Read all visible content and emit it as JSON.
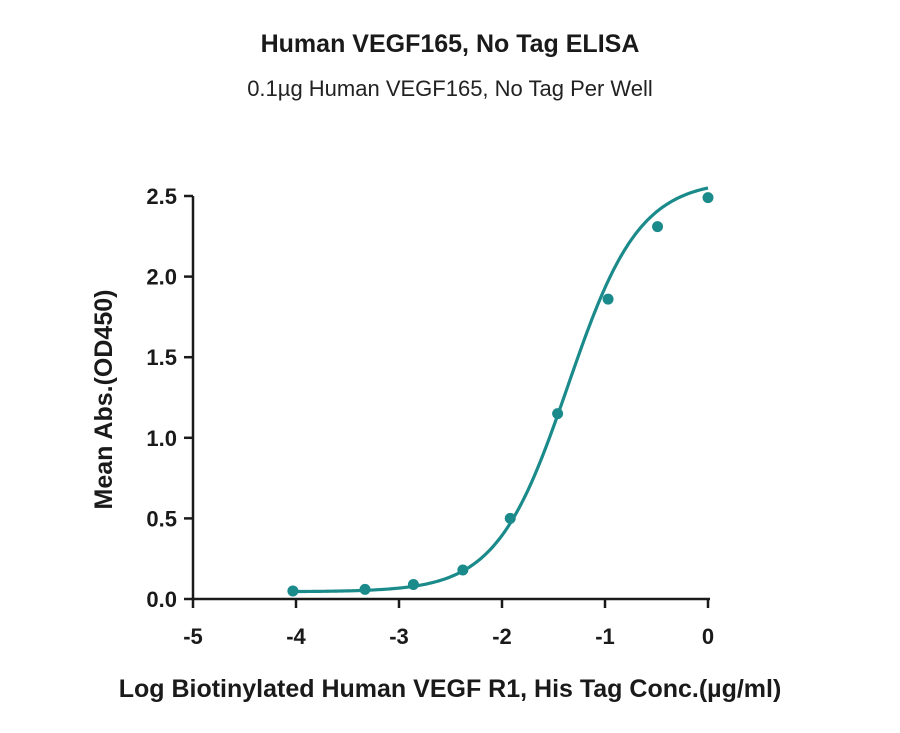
{
  "chart_data": {
    "type": "line",
    "title": "Human VEGF165, No Tag ELISA",
    "subtitle": "0.1µg Human VEGF165, No Tag Per Well",
    "xlabel": "Log Biotinylated Human VEGF R1, His Tag Conc.(µg/ml)",
    "ylabel": "Mean Abs.(OD450)",
    "xlim": [
      -5,
      0
    ],
    "ylim": [
      0,
      2.5
    ],
    "x_ticks": [
      -5,
      -4,
      -3,
      -2,
      -1,
      0
    ],
    "x_tick_labels": [
      "-5",
      "-4",
      "-3",
      "-2",
      "-1",
      "0"
    ],
    "y_ticks": [
      0,
      0.5,
      1.0,
      1.5,
      2.0,
      2.5
    ],
    "y_tick_labels": [
      "0.0",
      "0.5",
      "1.0",
      "1.5",
      "2.0",
      "2.5"
    ],
    "grid": false,
    "color": "#1b8a8a",
    "series": [
      {
        "x": [
          -4.03,
          -3.33,
          -2.86,
          -2.38,
          -1.92,
          -1.46,
          -0.97,
          -0.49,
          0.0
        ],
        "y": [
          0.05,
          0.06,
          0.09,
          0.18,
          0.5,
          1.15,
          1.86,
          2.31,
          2.49
        ]
      }
    ],
    "fit": {
      "model": "4PL",
      "bottom": 0.045,
      "top": 2.6,
      "log_ec50": -1.36,
      "hill": 1.25,
      "x_range": [
        -4.03,
        0.0
      ]
    }
  }
}
